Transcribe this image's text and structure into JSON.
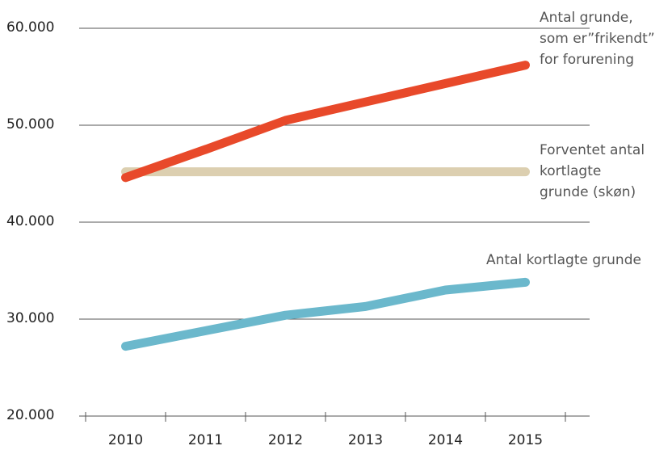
{
  "chart_data": {
    "type": "line",
    "categories": [
      "2010",
      "2011",
      "2012",
      "2013",
      "2014",
      "2015"
    ],
    "series": [
      {
        "name": "Antal grunde,\nsom er”frikendt”\nfor forurening",
        "color": "#e8492a",
        "values": [
          44600,
          47500,
          50500,
          52400,
          54300,
          56200
        ]
      },
      {
        "name": "Forventet antal\nkortlagte\ngrunde (skøn)",
        "color": "#dccfb0",
        "values": [
          45200,
          45200,
          45200,
          45200,
          45200,
          45200
        ]
      },
      {
        "name": "Antal kortlagte grunde",
        "color": "#6bb8cc",
        "values": [
          27200,
          28800,
          30400,
          31300,
          33000,
          33800
        ]
      }
    ],
    "ylim": [
      20000,
      60000
    ],
    "yticks": [
      {
        "value": 20000,
        "label": "20.000"
      },
      {
        "value": 30000,
        "label": "30.000"
      },
      {
        "value": 40000,
        "label": "40.000"
      },
      {
        "value": 50000,
        "label": "50.000"
      },
      {
        "value": 60000,
        "label": "60.000"
      }
    ],
    "grid": true
  }
}
